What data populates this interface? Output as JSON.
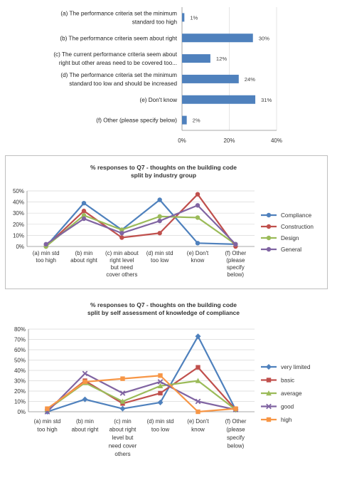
{
  "chart_data": [
    {
      "type": "bar",
      "orientation": "horizontal",
      "title": "",
      "categories": [
        [
          "(a) The performance criteria set the minimum",
          "standard too high"
        ],
        [
          "(b) The performance criteria seem about right"
        ],
        [
          "(c) The current performance criteria seem about",
          "right but other areas need to be covered too..."
        ],
        [
          "(d) The performance criteria set the minimum",
          "standard too low and should be increased"
        ],
        [
          "(e) Don't know"
        ],
        [
          "(f) Other (please specify below)"
        ]
      ],
      "values": [
        1,
        30,
        12,
        24,
        31,
        2
      ],
      "value_labels": [
        "1%",
        "30%",
        "12%",
        "24%",
        "31%",
        "2%"
      ],
      "xlim": [
        0,
        40
      ],
      "x_ticks": [
        "0%",
        "20%",
        "40%"
      ],
      "grid": true,
      "colors": {
        "bar": "#4f81bd"
      }
    },
    {
      "type": "line",
      "title": [
        "% responses to Q7 - thoughts on the building code",
        "split by industry group"
      ],
      "categories": [
        [
          "(a)  min std",
          "too high"
        ],
        [
          "(b) min",
          "about right"
        ],
        [
          "(c) min about",
          "right level",
          "but need",
          "cover others"
        ],
        [
          "(d) min std",
          "too low"
        ],
        [
          "(e) Don't",
          "know"
        ],
        [
          "(f) Other",
          "(please",
          "specify",
          "below)"
        ]
      ],
      "ylim": [
        0,
        50
      ],
      "y_ticks": [
        "0%",
        "10%",
        "20%",
        "30%",
        "40%",
        "50%"
      ],
      "legend": "right",
      "series": [
        {
          "name": "Compliance",
          "values": [
            0,
            39,
            15,
            42,
            3,
            2
          ],
          "color": "#4f81bd",
          "marker": "circle"
        },
        {
          "name": "Construction",
          "values": [
            0,
            32,
            8,
            12,
            47,
            0
          ],
          "color": "#c0504d",
          "marker": "circle"
        },
        {
          "name": "Design",
          "values": [
            0,
            28,
            15,
            27,
            26,
            2
          ],
          "color": "#9bbb59",
          "marker": "circle"
        },
        {
          "name": "General",
          "values": [
            2,
            25,
            12,
            23,
            37,
            2
          ],
          "color": "#8064a2",
          "marker": "circle"
        }
      ]
    },
    {
      "type": "line",
      "title": [
        "% responses to Q7 - thoughts on the building code",
        "split by self assessment of knowledge of compliance"
      ],
      "categories": [
        [
          "(a) min std",
          "too high"
        ],
        [
          "(b) min",
          "about right"
        ],
        [
          "(c) min",
          "about right",
          "level but",
          "need cover",
          "others"
        ],
        [
          "(d) min std",
          "too low"
        ],
        [
          "(e) Don't",
          "know"
        ],
        [
          "(f) Other",
          "(please",
          "specify",
          "below)"
        ]
      ],
      "ylim": [
        0,
        80
      ],
      "y_ticks": [
        "0%",
        "10%",
        "20%",
        "30%",
        "40%",
        "50%",
        "60%",
        "70%",
        "80%"
      ],
      "legend": "right",
      "series": [
        {
          "name": "very limited",
          "values": [
            0,
            12,
            3,
            9,
            73,
            2
          ],
          "color": "#4f81bd",
          "marker": "diamond"
        },
        {
          "name": "basic",
          "values": [
            2,
            30,
            8,
            18,
            43,
            2
          ],
          "color": "#c0504d",
          "marker": "square"
        },
        {
          "name": "average",
          "values": [
            2,
            28,
            10,
            25,
            30,
            2
          ],
          "color": "#9bbb59",
          "marker": "triangle"
        },
        {
          "name": "good",
          "values": [
            0,
            37,
            18,
            29,
            10,
            2
          ],
          "color": "#8064a2",
          "marker": "x"
        },
        {
          "name": "high",
          "values": [
            3,
            29,
            32,
            35,
            0,
            3
          ],
          "color": "#f79646",
          "marker": "square"
        }
      ]
    }
  ]
}
